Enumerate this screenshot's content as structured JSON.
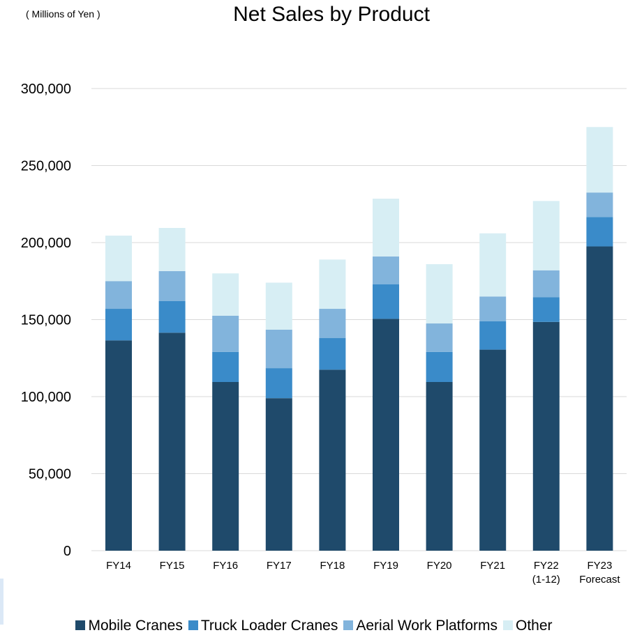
{
  "unit_label": "( Millions of Yen )",
  "chart_data": {
    "type": "bar",
    "stacked": true,
    "title": "Net Sales by Product",
    "xlabel": "",
    "ylabel": "( Millions of Yen )",
    "ylim": [
      0,
      300000
    ],
    "yticks": [
      "0",
      "50,000",
      "100,000",
      "150,000",
      "200,000",
      "250,000",
      "300,000"
    ],
    "ytick_values": [
      0,
      50000,
      100000,
      150000,
      200000,
      250000,
      300000
    ],
    "grid": true,
    "legend_position": "bottom",
    "categories": [
      [
        "FY14"
      ],
      [
        "FY15"
      ],
      [
        "FY16"
      ],
      [
        "FY17"
      ],
      [
        "FY18"
      ],
      [
        "FY19"
      ],
      [
        "FY20"
      ],
      [
        "FY21"
      ],
      [
        "FY22",
        "(1-12)"
      ],
      [
        "FY23",
        "Forecast"
      ]
    ],
    "series": [
      {
        "name": "Mobile Cranes",
        "color": "#1f4a6b",
        "values": [
          136500,
          141500,
          109500,
          99000,
          117500,
          150500,
          109500,
          130500,
          148500,
          197500
        ]
      },
      {
        "name": "Truck Loader Cranes",
        "color": "#3a8bc9",
        "values": [
          20500,
          20500,
          19500,
          19500,
          20500,
          22500,
          19500,
          18500,
          16000,
          19000
        ]
      },
      {
        "name": "Aerial Work Platforms",
        "color": "#82b4dc",
        "values": [
          18000,
          19500,
          23500,
          25000,
          19000,
          18000,
          18500,
          16000,
          17500,
          16000
        ]
      },
      {
        "name": "Other",
        "color": "#d7eef4",
        "values": [
          29500,
          28000,
          27500,
          30500,
          32000,
          37500,
          38500,
          41000,
          45000,
          42500
        ]
      }
    ]
  }
}
